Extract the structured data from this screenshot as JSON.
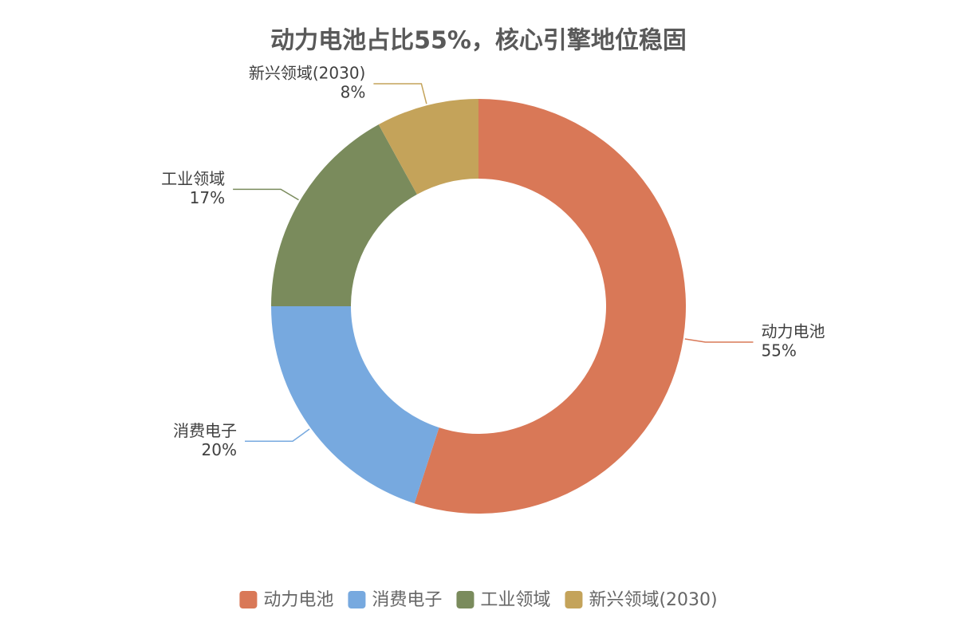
{
  "chart_data": {
    "type": "donut",
    "title": "动力电池占比55%，核心引擎地位稳固",
    "categories": [
      "动力电池",
      "消费电子",
      "工业领域",
      "新兴领域(2030)"
    ],
    "values": [
      55,
      20,
      17,
      8
    ],
    "value_labels": [
      "55%",
      "20%",
      "17%",
      "8%"
    ],
    "colors": [
      "#d97857",
      "#77a9df",
      "#7a8b5c",
      "#c4a35a"
    ],
    "legend": "bottom"
  }
}
